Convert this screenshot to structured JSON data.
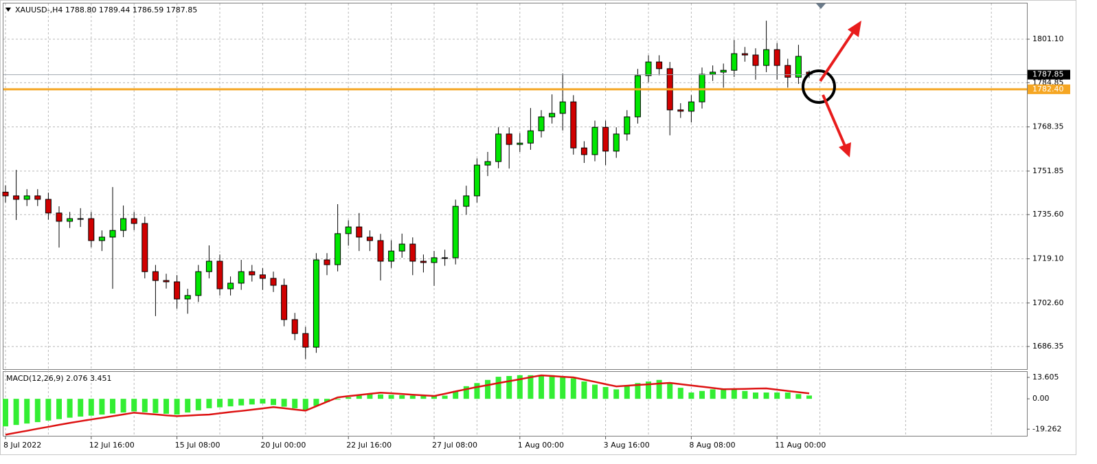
{
  "chart_data": [
    {
      "type": "candlestick",
      "title": "XAUUSD-,H4  1788.80 1789.44 1786.59 1787.85",
      "up_color": "#00e600",
      "down_color": "#d00000",
      "grid": true,
      "ylim": [
        1677.9,
        1814.45
      ],
      "yticks": [
        {
          "value": 1801.1,
          "label": "1801.10"
        },
        1784.85,
        1768.35,
        1751.85,
        {
          "value": 1735.6,
          "label": "1735.60"
        },
        {
          "value": 1719.1,
          "label": "1719.10"
        },
        {
          "value": 1702.6,
          "label": "1702.60"
        },
        1686.35
      ],
      "categories": [
        "8 Jul 2022",
        null,
        null,
        null,
        null,
        null,
        null,
        null,
        "12 Jul 16:00",
        null,
        null,
        null,
        null,
        null,
        null,
        null,
        "15 Jul 08:00",
        null,
        null,
        null,
        null,
        null,
        null,
        null,
        "20 Jul 00:00",
        null,
        null,
        null,
        null,
        null,
        null,
        null,
        "22 Jul 16:00",
        null,
        null,
        null,
        null,
        null,
        null,
        null,
        "27 Jul 08:00",
        null,
        null,
        null,
        null,
        null,
        null,
        null,
        "1 Aug 00:00",
        null,
        null,
        null,
        null,
        null,
        null,
        null,
        "3 Aug 16:00",
        null,
        null,
        null,
        null,
        null,
        null,
        null,
        "8 Aug 08:00",
        null,
        null,
        null,
        null,
        null,
        null,
        null,
        "11 Aug 00:00",
        null,
        null,
        null
      ],
      "open": [
        1744.0,
        1742.6,
        1741.3,
        1742.6,
        1741.3,
        1736.2,
        1733.1,
        1734.1,
        1734.1,
        1725.9,
        1727.2,
        1729.7,
        1734.1,
        1732.3,
        1714.3,
        1711.0,
        1710.5,
        1704.1,
        1705.4,
        1714.3,
        1718.2,
        1707.9,
        1710.0,
        1714.3,
        1713.1,
        1711.8,
        1709.2,
        1696.4,
        1691.2,
        1686.1,
        1718.7,
        1716.9,
        1728.5,
        1731.0,
        1727.2,
        1725.9,
        1718.2,
        1722.0,
        1724.6,
        1718.2,
        1717.7,
        1719.5,
        1719.5,
        1738.7,
        1742.6,
        1754.1,
        1755.4,
        1765.7,
        1761.8,
        1762.3,
        1766.9,
        1772.1,
        1773.4,
        1777.7,
        1760.5,
        1758.0,
        1768.2,
        1759.3,
        1765.7,
        1772.1,
        1787.5,
        1792.6,
        1790.1,
        1774.7,
        1774.2,
        1777.7,
        1788.0,
        1788.8,
        1789.5,
        1795.7,
        1795.2,
        1791.3,
        1797.2,
        1791.3,
        1786.9,
        1788.8
      ],
      "high": [
        1746.5,
        1752.3,
        1745.1,
        1745.1,
        1743.8,
        1738.7,
        1736.6,
        1738.0,
        1736.6,
        1729.7,
        1745.9,
        1739.0,
        1736.6,
        1734.8,
        1716.8,
        1713.5,
        1713.0,
        1707.9,
        1716.8,
        1724.1,
        1720.7,
        1712.5,
        1718.7,
        1716.8,
        1715.6,
        1714.3,
        1711.7,
        1698.9,
        1693.7,
        1721.2,
        1721.2,
        1739.5,
        1733.5,
        1736.2,
        1729.7,
        1728.4,
        1726.0,
        1728.5,
        1727.1,
        1720.7,
        1722.0,
        1722.5,
        1741.2,
        1746.4,
        1756.6,
        1759.0,
        1768.2,
        1768.2,
        1766.0,
        1775.4,
        1774.6,
        1780.5,
        1788.3,
        1780.2,
        1763.0,
        1770.7,
        1770.7,
        1768.2,
        1774.6,
        1790.0,
        1795.1,
        1795.1,
        1792.6,
        1777.2,
        1780.2,
        1790.5,
        1791.3,
        1792.0,
        1800.8,
        1798.2,
        1797.7,
        1808.0,
        1799.7,
        1793.8,
        1799.0,
        1789.44
      ],
      "low": [
        1740.1,
        1733.6,
        1738.8,
        1738.8,
        1733.7,
        1723.3,
        1730.6,
        1731.0,
        1723.4,
        1722.0,
        1707.9,
        1727.2,
        1729.8,
        1711.8,
        1697.7,
        1708.0,
        1700.5,
        1698.6,
        1703.0,
        1711.8,
        1705.4,
        1705.4,
        1707.5,
        1710.6,
        1707.5,
        1706.7,
        1693.9,
        1688.7,
        1681.7,
        1684.0,
        1713.0,
        1714.4,
        1724.0,
        1722.0,
        1722.0,
        1711.0,
        1715.7,
        1719.5,
        1713.0,
        1714.0,
        1709.0,
        1716.5,
        1717.0,
        1735.6,
        1740.1,
        1750.0,
        1752.9,
        1752.8,
        1759.0,
        1759.8,
        1764.4,
        1769.6,
        1767.0,
        1758.0,
        1754.9,
        1755.5,
        1754.1,
        1756.8,
        1763.2,
        1769.6,
        1785.0,
        1787.6,
        1765.2,
        1771.7,
        1770.0,
        1775.2,
        1785.5,
        1783.0,
        1787.0,
        1792.7,
        1786.0,
        1788.8,
        1786.0,
        1783.0,
        1784.4,
        1786.59
      ],
      "close": [
        1742.6,
        1741.3,
        1742.6,
        1741.3,
        1736.2,
        1733.1,
        1734.1,
        1734.1,
        1725.9,
        1727.2,
        1729.7,
        1734.1,
        1732.3,
        1714.3,
        1711.0,
        1710.5,
        1704.1,
        1705.4,
        1714.3,
        1718.2,
        1707.9,
        1710.0,
        1714.3,
        1713.1,
        1711.8,
        1709.2,
        1696.4,
        1691.2,
        1686.1,
        1718.7,
        1716.9,
        1728.5,
        1731.0,
        1727.2,
        1725.9,
        1718.2,
        1722.0,
        1724.6,
        1718.2,
        1717.7,
        1719.5,
        1719.5,
        1738.7,
        1742.6,
        1754.1,
        1755.4,
        1765.7,
        1761.8,
        1762.3,
        1766.9,
        1772.1,
        1773.4,
        1777.7,
        1760.5,
        1758.0,
        1768.2,
        1759.3,
        1765.7,
        1772.1,
        1787.5,
        1792.6,
        1790.1,
        1774.7,
        1774.2,
        1777.7,
        1788.0,
        1788.8,
        1789.5,
        1795.7,
        1795.2,
        1791.3,
        1797.2,
        1791.3,
        1786.9,
        1794.7,
        1787.85
      ],
      "hlines": [
        {
          "value": 1787.85,
          "color": "#000000",
          "line_color": "#a0a8b0"
        },
        {
          "value": 1782.4,
          "label": "1782.40",
          "color": "#f5a623",
          "line_color": "#f5a623"
        }
      ]
    },
    {
      "type": "macd",
      "title": "MACD(12,26,9) 2.076 3.451",
      "ylim": [
        -23.5,
        17.1
      ],
      "yticks": [
        13.605,
        {
          "value": 0,
          "label": "0.00"
        },
        -19.262
      ],
      "histogram": {
        "color": "#33ee33",
        "values": [
          -17.5,
          -16.6,
          -15.7,
          -14.8,
          -13.8,
          -12.9,
          -12,
          -11.3,
          -10.7,
          -10,
          -9.3,
          -8.7,
          -8,
          -8.5,
          -9,
          -9.5,
          -10,
          -8.7,
          -7.3,
          -6,
          -5.4,
          -4.8,
          -4.2,
          -3.6,
          -3,
          -4,
          -5,
          -6,
          -7,
          -4.5,
          -2,
          -0.5,
          1,
          2,
          3,
          2.8,
          2.5,
          2.3,
          2,
          2,
          2,
          2,
          5,
          8,
          10,
          12,
          14,
          14.5,
          15,
          15,
          15,
          15,
          14,
          13,
          11,
          9,
          7.5,
          6,
          8,
          10,
          11,
          12,
          10,
          7,
          4,
          5,
          6,
          6,
          6,
          5,
          4,
          4,
          4,
          4,
          3,
          2.076
        ]
      },
      "signal": {
        "color": "#dd1111",
        "values": [
          -22.8,
          -21.5,
          -20.3,
          -19,
          -17.8,
          -16.5,
          -15.3,
          -14.2,
          -13.1,
          -12.1,
          -11,
          -9.9,
          -8.8,
          -9.4,
          -9.9,
          -10.5,
          -11,
          -10.7,
          -10.3,
          -10,
          -9.2,
          -8.4,
          -7.7,
          -6.9,
          -6.1,
          -5.3,
          -6,
          -6.8,
          -7.5,
          -4.7,
          -1.9,
          0.9,
          1.7,
          2.4,
          3.2,
          3.9,
          3.5,
          3.1,
          2.6,
          2.2,
          1.8,
          3.2,
          4.7,
          6.1,
          7.5,
          8.7,
          10,
          11.2,
          12.4,
          13.7,
          14.9,
          14.5,
          14,
          13.6,
          12.2,
          10.8,
          9.3,
          7.9,
          8.3,
          8.8,
          9.2,
          9.7,
          10.1,
          9.3,
          8.5,
          7.7,
          6.9,
          6.1,
          6.2,
          6.3,
          6.5,
          6.6,
          5.8,
          5,
          4.2,
          3.451
        ]
      }
    }
  ]
}
